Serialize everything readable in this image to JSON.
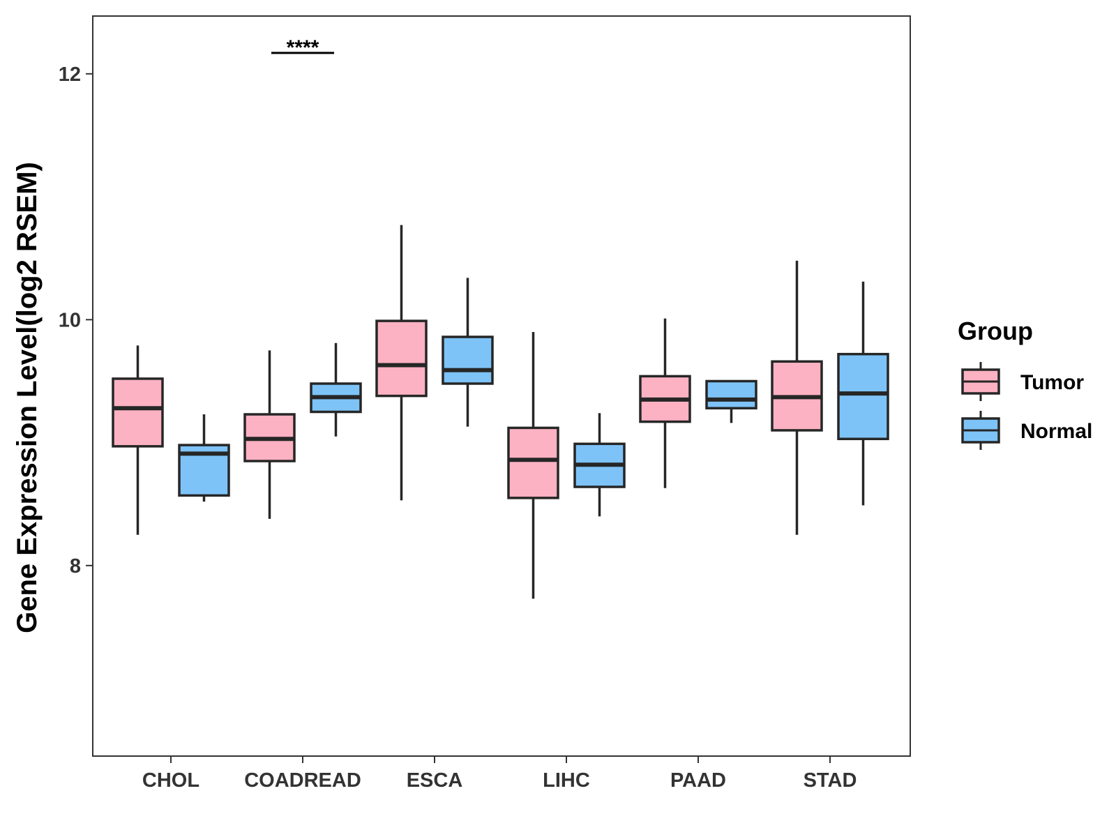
{
  "chart_data": {
    "type": "boxplot",
    "title": "",
    "xlabel": "",
    "ylabel": "Gene Expression Level(log2 RSEM)",
    "ylim": [
      6.45,
      12.47
    ],
    "yticks": [
      8,
      10,
      12
    ],
    "categories": [
      "CHOL",
      "COADREAD",
      "ESCA",
      "LIHC",
      "PAAD",
      "STAD"
    ],
    "legend": {
      "title": "Group",
      "position": "right",
      "entries": [
        {
          "name": "Tumor",
          "color": "#fcb2c3"
        },
        {
          "name": "Normal",
          "color": "#7ec3f7"
        }
      ]
    },
    "series": [
      {
        "name": "Tumor",
        "color": "#fcb2c3",
        "boxes": [
          {
            "category": "CHOL",
            "min": 8.25,
            "q1": 8.97,
            "median": 9.28,
            "q3": 9.52,
            "max": 9.79
          },
          {
            "category": "COADREAD",
            "min": 8.38,
            "q1": 8.85,
            "median": 9.03,
            "q3": 9.23,
            "max": 9.75
          },
          {
            "category": "ESCA",
            "min": 8.53,
            "q1": 9.38,
            "median": 9.63,
            "q3": 9.99,
            "max": 10.77
          },
          {
            "category": "LIHC",
            "min": 7.73,
            "q1": 8.55,
            "median": 8.86,
            "q3": 9.12,
            "max": 9.9
          },
          {
            "category": "PAAD",
            "min": 8.63,
            "q1": 9.17,
            "median": 9.35,
            "q3": 9.54,
            "max": 10.01
          },
          {
            "category": "STAD",
            "min": 8.25,
            "q1": 9.1,
            "median": 9.37,
            "q3": 9.66,
            "max": 10.48
          }
        ]
      },
      {
        "name": "Normal",
        "color": "#7ec3f7",
        "boxes": [
          {
            "category": "CHOL",
            "min": 8.52,
            "q1": 8.57,
            "median": 8.91,
            "q3": 8.98,
            "max": 9.23
          },
          {
            "category": "COADREAD",
            "min": 9.05,
            "q1": 9.25,
            "median": 9.37,
            "q3": 9.48,
            "max": 9.81
          },
          {
            "category": "ESCA",
            "min": 9.13,
            "q1": 9.48,
            "median": 9.59,
            "q3": 9.86,
            "max": 10.34
          },
          {
            "category": "LIHC",
            "min": 8.4,
            "q1": 8.64,
            "median": 8.82,
            "q3": 8.99,
            "max": 9.24
          },
          {
            "category": "PAAD",
            "min": 9.16,
            "q1": 9.28,
            "median": 9.35,
            "q3": 9.5,
            "max": 9.5
          },
          {
            "category": "STAD",
            "min": 8.49,
            "q1": 9.03,
            "median": 9.4,
            "q3": 9.72,
            "max": 10.31
          }
        ]
      }
    ],
    "annotations": [
      {
        "category": "COADREAD",
        "text": "****",
        "y": 12.17
      }
    ]
  }
}
